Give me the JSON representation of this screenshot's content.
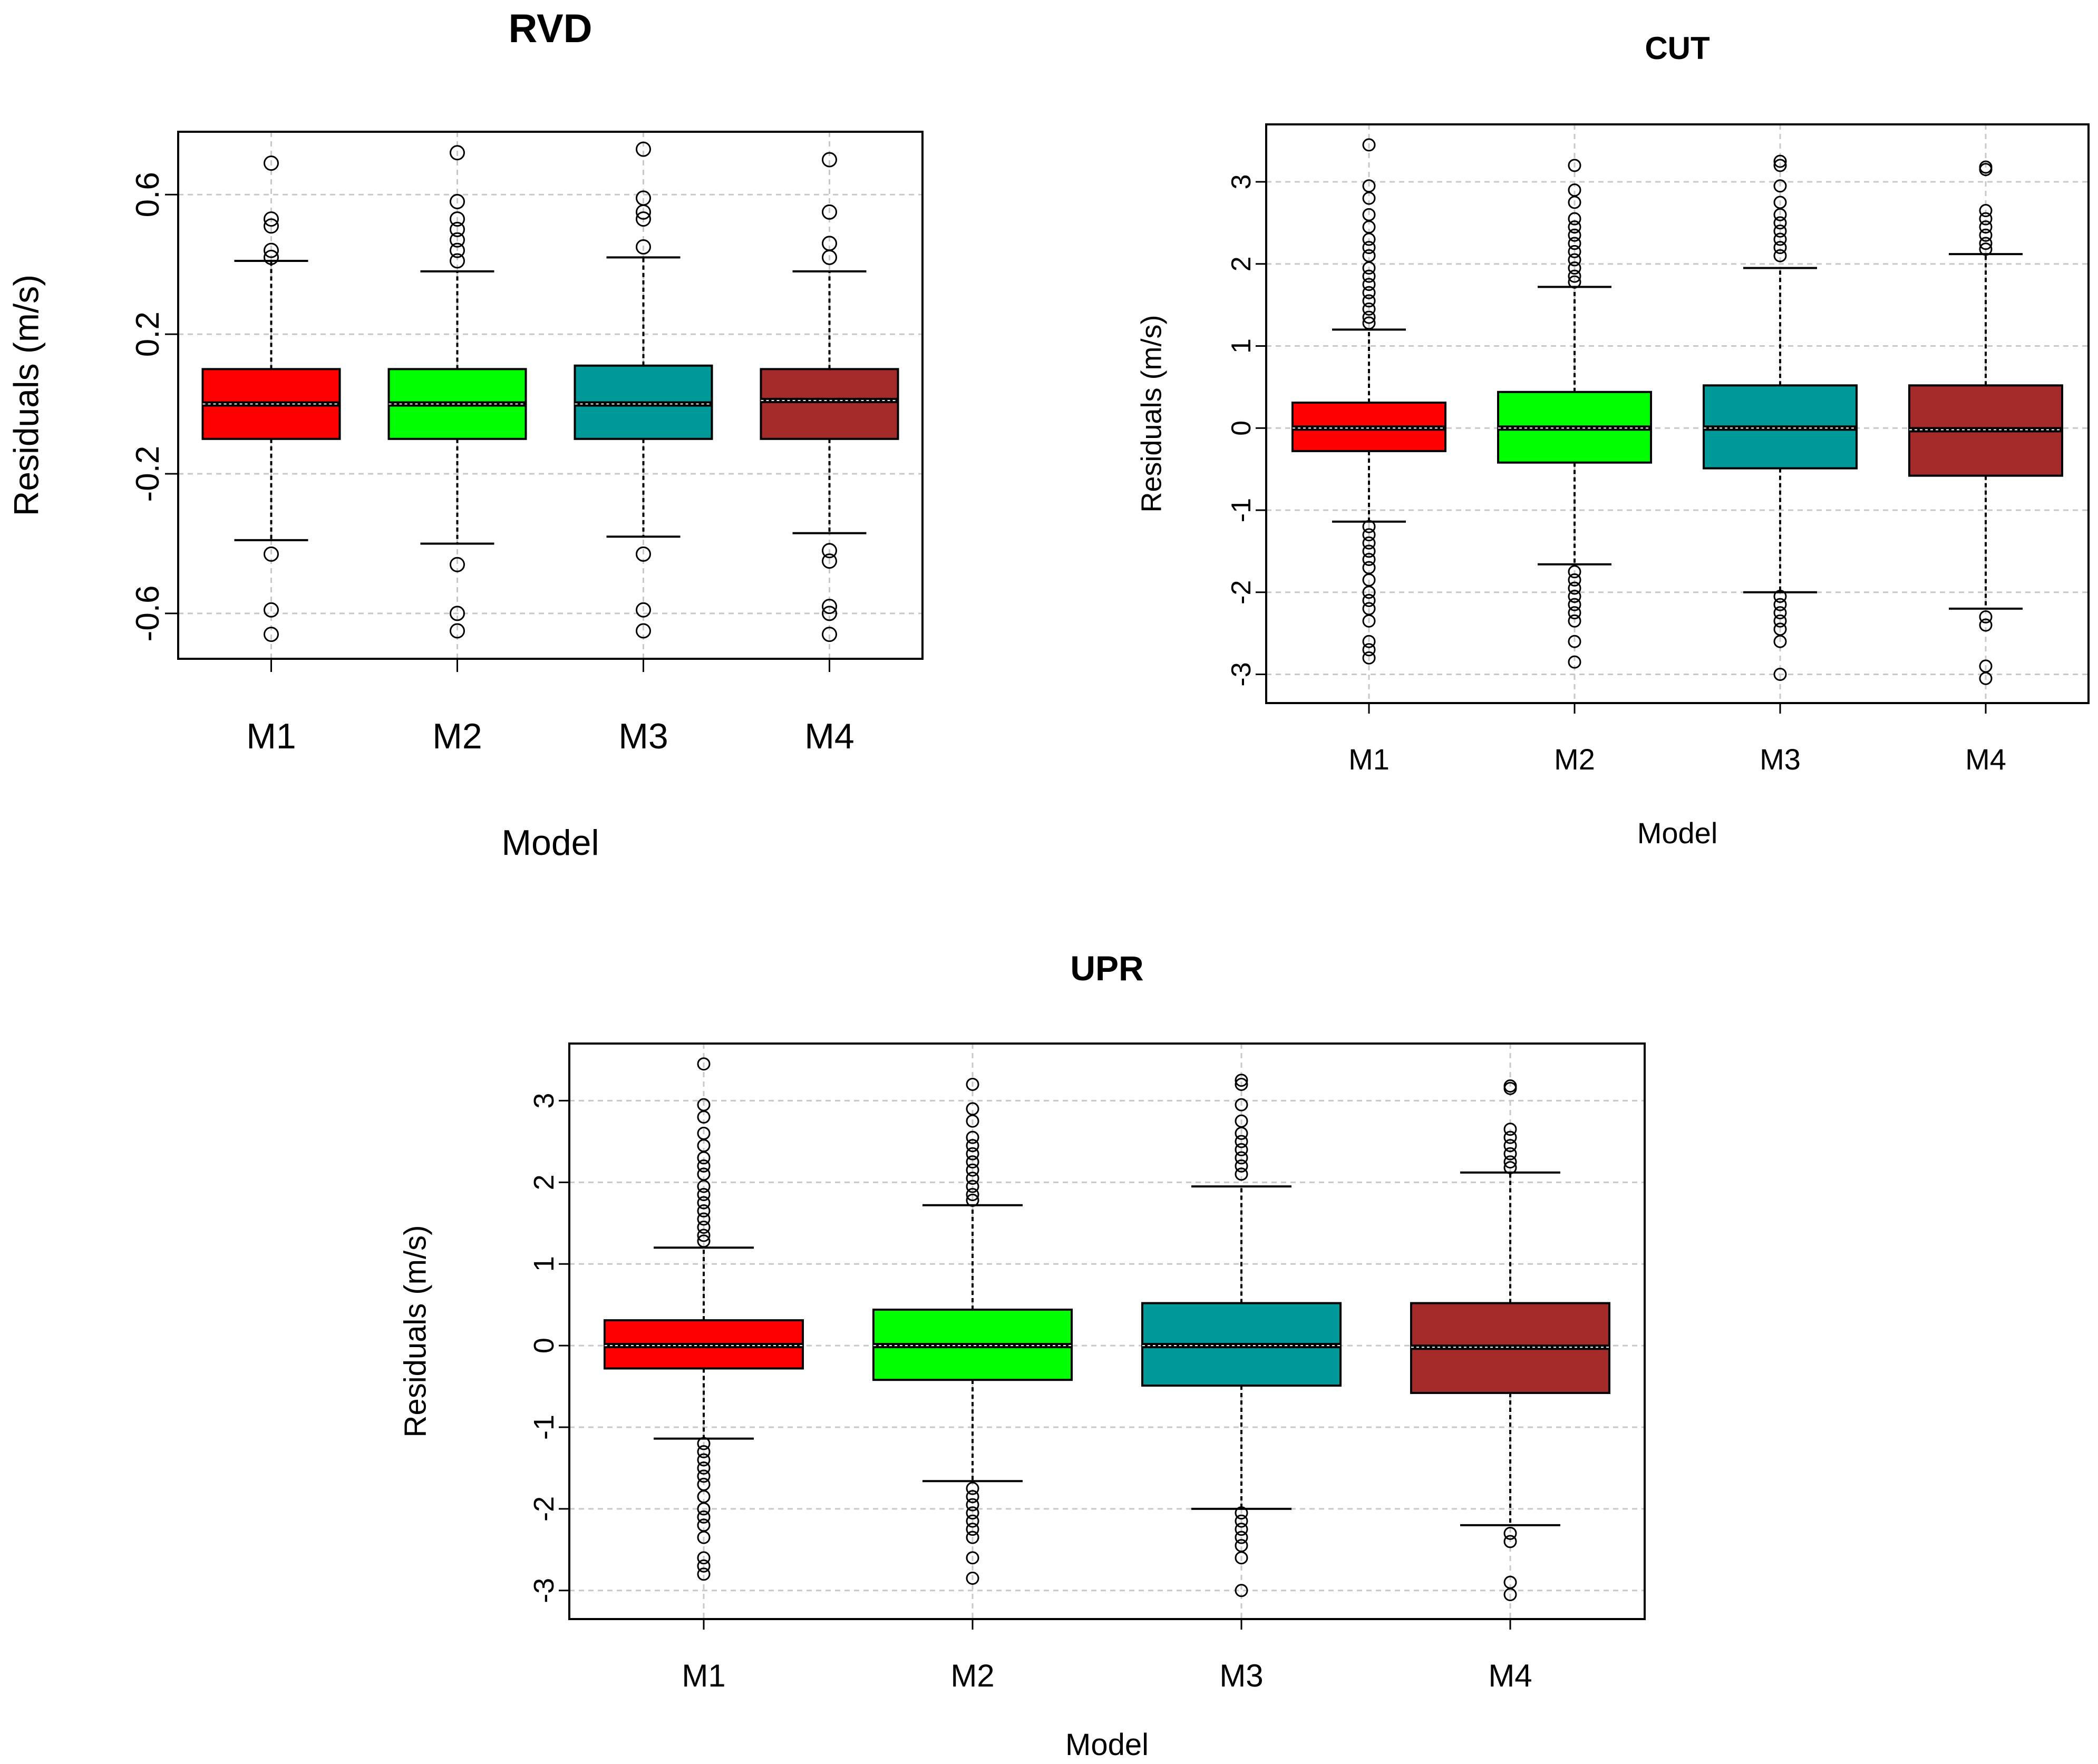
{
  "chart_data": [
    {
      "id": "rvd",
      "type": "box",
      "title": "RVD",
      "xlabel": "Model",
      "ylabel": "Residuals (m/s)",
      "categories": [
        "M1",
        "M2",
        "M3",
        "M4"
      ],
      "ylim": [
        -0.73,
        0.78
      ],
      "yticks": [
        -0.6,
        -0.2,
        0.2,
        0.6
      ],
      "ytick_labels": [
        "-0.6",
        "-0.2",
        "0.2",
        "0.6"
      ],
      "grid": true,
      "boxes": [
        {
          "name": "M1",
          "color": "#ff0000",
          "q1": -0.1,
          "median": 0.0,
          "q3": 0.1,
          "whisker_low": -0.39,
          "whisker_high": 0.41,
          "outliers": [
            0.69,
            0.53,
            0.51,
            0.44,
            0.42,
            -0.43,
            -0.59,
            -0.66
          ]
        },
        {
          "name": "M2",
          "color": "#00ff00",
          "q1": -0.1,
          "median": 0.0,
          "q3": 0.1,
          "whisker_low": -0.4,
          "whisker_high": 0.38,
          "outliers": [
            0.72,
            0.58,
            0.53,
            0.5,
            0.47,
            0.44,
            0.41,
            -0.46,
            -0.6,
            -0.65
          ]
        },
        {
          "name": "M3",
          "color": "#009999",
          "q1": -0.1,
          "median": 0.0,
          "q3": 0.11,
          "whisker_low": -0.38,
          "whisker_high": 0.42,
          "outliers": [
            0.73,
            0.59,
            0.55,
            0.53,
            0.45,
            -0.43,
            -0.59,
            -0.65
          ]
        },
        {
          "name": "M4",
          "color": "#a52a2a",
          "q1": -0.1,
          "median": 0.01,
          "q3": 0.1,
          "whisker_low": -0.37,
          "whisker_high": 0.38,
          "outliers": [
            0.7,
            0.55,
            0.46,
            0.42,
            -0.42,
            -0.45,
            -0.58,
            -0.6,
            -0.66
          ]
        }
      ]
    },
    {
      "id": "cut",
      "type": "box",
      "title": "CUT",
      "xlabel": "Model",
      "ylabel": "Residuals (m/s)",
      "categories": [
        "M1",
        "M2",
        "M3",
        "M4"
      ],
      "ylim": [
        -3.35,
        3.7
      ],
      "yticks": [
        -3,
        -2,
        -1,
        0,
        1,
        2,
        3
      ],
      "ytick_labels": [
        "-3",
        "-2",
        "-1",
        "0",
        "1",
        "2",
        "3"
      ],
      "grid": true,
      "boxes": [
        {
          "name": "M1",
          "color": "#ff0000",
          "q1": -0.28,
          "median": 0.0,
          "q3": 0.31,
          "whisker_low": -1.14,
          "whisker_high": 1.2,
          "outliers": [
            3.45,
            2.95,
            2.8,
            2.6,
            2.45,
            2.3,
            2.2,
            2.1,
            1.95,
            1.85,
            1.75,
            1.65,
            1.55,
            1.45,
            1.35,
            1.28,
            -1.2,
            -1.3,
            -1.4,
            -1.5,
            -1.6,
            -1.7,
            -1.85,
            -2.0,
            -2.1,
            -2.2,
            -2.35,
            -2.6,
            -2.7,
            -2.8
          ]
        },
        {
          "name": "M2",
          "color": "#00ff00",
          "q1": -0.42,
          "median": 0.0,
          "q3": 0.44,
          "whisker_low": -1.66,
          "whisker_high": 1.72,
          "outliers": [
            3.2,
            2.9,
            2.75,
            2.55,
            2.45,
            2.35,
            2.25,
            2.15,
            2.05,
            1.95,
            1.85,
            1.78,
            -1.75,
            -1.85,
            -1.95,
            -2.05,
            -2.15,
            -2.25,
            -2.35,
            -2.6,
            -2.85
          ]
        },
        {
          "name": "M3",
          "color": "#009999",
          "q1": -0.49,
          "median": 0.0,
          "q3": 0.52,
          "whisker_low": -2.0,
          "whisker_high": 1.95,
          "outliers": [
            3.25,
            3.2,
            2.95,
            2.75,
            2.6,
            2.5,
            2.4,
            2.3,
            2.2,
            2.1,
            -2.05,
            -2.15,
            -2.25,
            -2.35,
            -2.45,
            -2.6,
            -3.0
          ]
        },
        {
          "name": "M4",
          "color": "#a52a2a",
          "q1": -0.58,
          "median": -0.02,
          "q3": 0.52,
          "whisker_low": -2.2,
          "whisker_high": 2.12,
          "outliers": [
            3.18,
            3.15,
            2.65,
            2.55,
            2.45,
            2.35,
            2.25,
            2.18,
            -2.3,
            -2.4,
            -2.9,
            -3.05
          ]
        }
      ]
    },
    {
      "id": "upr",
      "type": "box",
      "title": "UPR",
      "xlabel": "Model",
      "ylabel": "Residuals (m/s)",
      "categories": [
        "M1",
        "M2",
        "M3",
        "M4"
      ],
      "ylim": [
        -3.35,
        3.7
      ],
      "yticks": [
        -3,
        -2,
        -1,
        0,
        1,
        2,
        3
      ],
      "ytick_labels": [
        "-3",
        "-2",
        "-1",
        "0",
        "1",
        "2",
        "3"
      ],
      "grid": true,
      "boxes": [
        {
          "name": "M1",
          "color": "#ff0000",
          "q1": -0.28,
          "median": 0.0,
          "q3": 0.31,
          "whisker_low": -1.14,
          "whisker_high": 1.2,
          "outliers": [
            3.45,
            2.95,
            2.8,
            2.6,
            2.45,
            2.3,
            2.2,
            2.1,
            1.95,
            1.85,
            1.75,
            1.65,
            1.55,
            1.45,
            1.35,
            1.28,
            -1.2,
            -1.3,
            -1.4,
            -1.5,
            -1.6,
            -1.7,
            -1.85,
            -2.0,
            -2.1,
            -2.2,
            -2.35,
            -2.6,
            -2.7,
            -2.8
          ]
        },
        {
          "name": "M2",
          "color": "#00ff00",
          "q1": -0.42,
          "median": 0.0,
          "q3": 0.44,
          "whisker_low": -1.66,
          "whisker_high": 1.72,
          "outliers": [
            3.2,
            2.9,
            2.75,
            2.55,
            2.45,
            2.35,
            2.25,
            2.15,
            2.05,
            1.95,
            1.85,
            1.78,
            -1.75,
            -1.85,
            -1.95,
            -2.05,
            -2.15,
            -2.25,
            -2.35,
            -2.6,
            -2.85
          ]
        },
        {
          "name": "M3",
          "color": "#009999",
          "q1": -0.49,
          "median": 0.0,
          "q3": 0.52,
          "whisker_low": -2.0,
          "whisker_high": 1.95,
          "outliers": [
            3.25,
            3.2,
            2.95,
            2.75,
            2.6,
            2.5,
            2.4,
            2.3,
            2.2,
            2.1,
            -2.05,
            -2.15,
            -2.25,
            -2.35,
            -2.45,
            -2.6,
            -3.0
          ]
        },
        {
          "name": "M4",
          "color": "#a52a2a",
          "q1": -0.58,
          "median": -0.02,
          "q3": 0.52,
          "whisker_low": -2.2,
          "whisker_high": 2.12,
          "outliers": [
            3.18,
            3.15,
            2.65,
            2.55,
            2.45,
            2.35,
            2.25,
            2.18,
            -2.3,
            -2.4,
            -2.9,
            -3.05
          ]
        }
      ]
    }
  ]
}
